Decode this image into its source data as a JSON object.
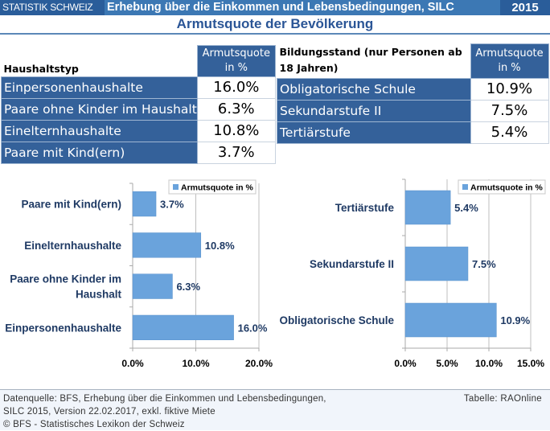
{
  "header": {
    "brand": "STATISTIK SCHWEIZ",
    "survey": "Erhebung über die Einkommen und Lebensbedingungen, SILC",
    "year": "2015",
    "subtitle": "Armutsquote der Bevölkerung"
  },
  "colors": {
    "banner": "#3c78b4",
    "banner_dark": "#2a5d9a",
    "table_header": "#34619a",
    "bar": "#6aa3dc",
    "label_text": "#1f3a64"
  },
  "table_household": {
    "col1_header": "Haushaltstyp",
    "col2_header_line1": "Armutsquote",
    "col2_header_line2": "in %",
    "rows": [
      {
        "label": "Einpersonenhaushalte",
        "value": "16.0%"
      },
      {
        "label": "Paare ohne Kinder im Haushalt",
        "value": "6.3%"
      },
      {
        "label": "Eineltern­haushalte",
        "value": "10.8%"
      },
      {
        "label": "Paare mit Kind(ern)",
        "value": "3.7%"
      }
    ]
  },
  "table_education": {
    "col1_header_line1": "Bildungsstand (nur Personen ab",
    "col1_header_line2": "18 Jahren)",
    "col2_header_line1": "Armutsquote",
    "col2_header_line2": "in %",
    "rows": [
      {
        "label": "Obligatorische Schule",
        "value": "10.9%"
      },
      {
        "label": "Sekundarstufe II",
        "value": "7.5%"
      },
      {
        "label": "Tertiärstufe",
        "value": "5.4%"
      }
    ]
  },
  "chart_data": [
    {
      "type": "bar",
      "orientation": "horizontal",
      "title": "",
      "categories": [
        "Paare mit Kind(ern)",
        "Einelternhaushalte",
        "Paare ohne Kinder im Haushalt",
        "Einpersonenhaushalte"
      ],
      "category_lines": [
        [
          "Paare mit Kind(ern)"
        ],
        [
          "Einelternhaushalte"
        ],
        [
          "Paare ohne Kinder im",
          "Haushalt"
        ],
        [
          "Einpersonenhaushalte"
        ]
      ],
      "series": [
        {
          "name": "Armutsquote in %",
          "values": [
            3.7,
            10.8,
            6.3,
            16.0
          ]
        }
      ],
      "data_labels": [
        "3.7%",
        "10.8%",
        "6.3%",
        "16.0%"
      ],
      "xlim": [
        0,
        20
      ],
      "xticks": [
        0,
        10,
        20
      ],
      "xtick_labels": [
        "0.0%",
        "10.0%",
        "20.0%"
      ],
      "xlabel": "",
      "ylabel": "",
      "grid": true,
      "legend": "top-right"
    },
    {
      "type": "bar",
      "orientation": "horizontal",
      "title": "",
      "categories": [
        "Tertiärstufe",
        "Sekundarstufe II",
        "Obligatorische Schule"
      ],
      "category_lines": [
        [
          "Tertiärstufe"
        ],
        [
          "Sekundarstufe II"
        ],
        [
          "Obligatorische Schule"
        ]
      ],
      "series": [
        {
          "name": "Armutsquote in %",
          "values": [
            5.4,
            7.5,
            10.9
          ]
        }
      ],
      "data_labels": [
        "5.4%",
        "7.5%",
        "10.9%"
      ],
      "xlim": [
        0,
        15
      ],
      "xticks": [
        0,
        5,
        10,
        15
      ],
      "xtick_labels": [
        "0.0%",
        "5.0%",
        "10.0%",
        "15.0%"
      ],
      "xlabel": "",
      "ylabel": "",
      "grid": true,
      "legend": "top-right"
    }
  ],
  "footer": {
    "source_line1": "Datenquelle:  BFS, Erhebung über die Einkommen und Lebensbedingungen,",
    "source_line2": "SILC 2015, Version 22.02.2017, exkl. fiktive Miete",
    "source_line3": "© BFS - Statistisches Lexikon der Schweiz",
    "credit": "Tabelle: RAOnline"
  }
}
